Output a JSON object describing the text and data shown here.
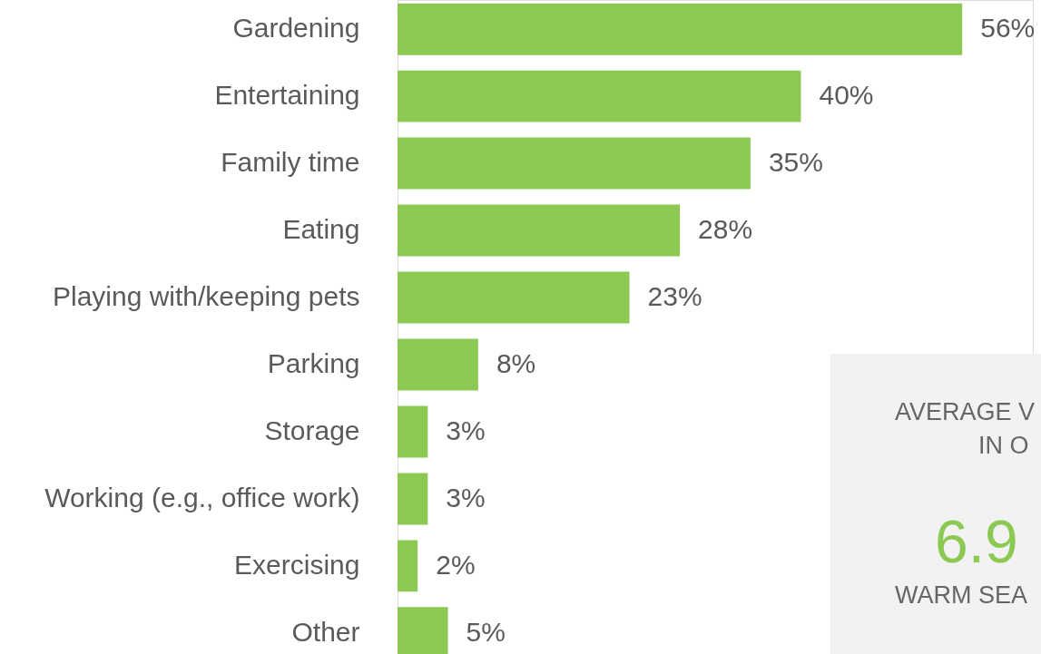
{
  "chart_data": {
    "type": "bar",
    "orientation": "horizontal",
    "categories": [
      "Gardening",
      "Entertaining",
      "Family time",
      "Eating",
      "Playing with/keeping pets",
      "Parking",
      "Storage",
      "Working (e.g., office work)",
      "Exercising",
      "Other"
    ],
    "values": [
      56,
      40,
      35,
      28,
      23,
      8,
      3,
      3,
      2,
      5
    ],
    "value_labels": [
      "56%",
      "40%",
      "35%",
      "28%",
      "23%",
      "8%",
      "3%",
      "3%",
      "2%",
      "5%"
    ],
    "color": "#8bc953",
    "xlim": [
      0,
      63
    ],
    "tick_labels": "y",
    "grid": false,
    "annotations": [
      "AVERAGE V",
      "IN O",
      "6.9",
      "WARM SEA"
    ]
  }
}
